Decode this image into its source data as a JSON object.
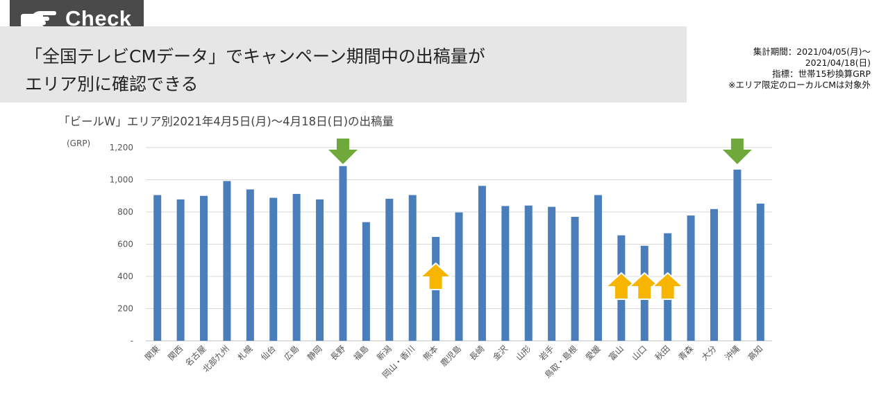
{
  "tag": {
    "label": "Check",
    "icon": "pointing-hand-icon"
  },
  "headline": {
    "line1": "「全国テレビCMデータ」でキャンペーン期間中の出稿量が",
    "line2": "エリア別に確認できる"
  },
  "notes": [
    "集計期間：2021/04/05(月)～",
    "2021/04/18(日)",
    "指標：世帯15秒換算GRP",
    "※エリア限定のローカルCMは対象外"
  ],
  "chart_data": {
    "type": "bar",
    "title": "「ビールW」エリア別2021年4月5日(月)～4月18日(日)の出稿量",
    "ylabel": "(GRP)",
    "ylim": [
      0,
      1200
    ],
    "yticks": [
      {
        "value": 0,
        "label": "-"
      },
      {
        "value": 200,
        "label": "200"
      },
      {
        "value": 400,
        "label": "400"
      },
      {
        "value": 600,
        "label": "600"
      },
      {
        "value": 800,
        "label": "800"
      },
      {
        "value": 1000,
        "label": "1,000"
      },
      {
        "value": 1200,
        "label": "1,200"
      }
    ],
    "grid": true,
    "bar_color": "#4a7ebb",
    "categories": [
      "関東",
      "関西",
      "名古屋",
      "北部九州",
      "札幌",
      "仙台",
      "広島",
      "静岡",
      "長野",
      "福島",
      "新潟",
      "岡山・香川",
      "熊本",
      "鹿児島",
      "長崎",
      "金沢",
      "山形",
      "岩手",
      "鳥取・島根",
      "愛媛",
      "富山",
      "山口",
      "秋田",
      "青森",
      "大分",
      "沖縄",
      "高知"
    ],
    "values": [
      905,
      878,
      900,
      992,
      940,
      888,
      912,
      878,
      1085,
      737,
      882,
      905,
      645,
      797,
      962,
      837,
      840,
      832,
      770,
      905,
      655,
      590,
      668,
      778,
      818,
      1063,
      852
    ],
    "annotations": [
      {
        "category": "長野",
        "marker": "down-arrow",
        "color": "#6fa83b"
      },
      {
        "category": "沖縄",
        "marker": "down-arrow",
        "color": "#6fa83b"
      },
      {
        "category": "熊本",
        "marker": "up-arrow",
        "color": "#f7b500"
      },
      {
        "category": "富山",
        "marker": "up-arrow",
        "color": "#f7b500"
      },
      {
        "category": "山口",
        "marker": "up-arrow",
        "color": "#f7b500"
      },
      {
        "category": "秋田",
        "marker": "up-arrow",
        "color": "#f7b500"
      }
    ]
  }
}
